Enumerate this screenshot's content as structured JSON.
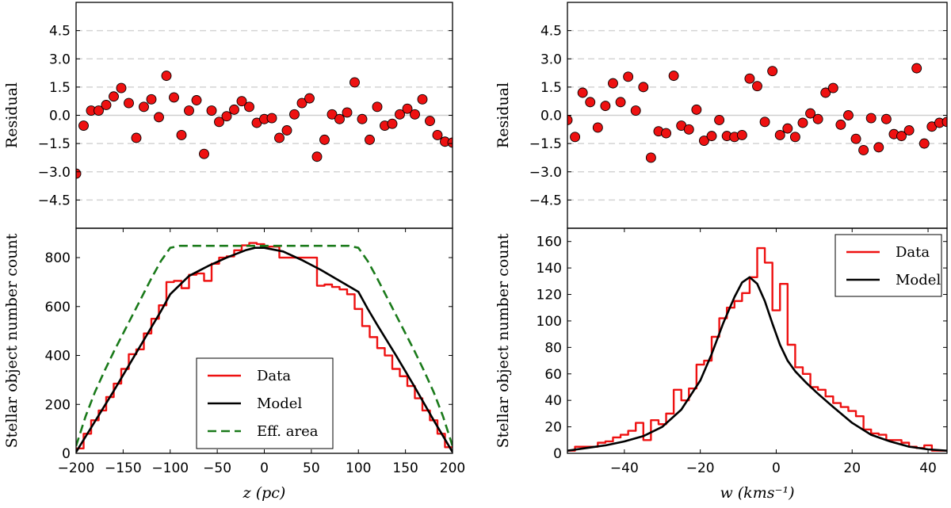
{
  "chart_data": [
    {
      "id": "left_residual",
      "type": "scatter",
      "xlim": [
        -200,
        200
      ],
      "ylim": [
        -6,
        6
      ],
      "yticks": [
        -4.5,
        -3.0,
        -1.5,
        0.0,
        1.5,
        3.0,
        4.5
      ],
      "ytick_labels": [
        "−4.5",
        "−3.0",
        "−1.5",
        "0.0",
        "1.5",
        "3.0",
        "4.5"
      ],
      "ylabel": "Residual",
      "xlabel": "",
      "grid": "dashed horizontal",
      "marker_color": "#ee1111",
      "x": [
        -200,
        -192,
        -184,
        -176,
        -168,
        -160,
        -152,
        -144,
        -136,
        -128,
        -120,
        -112,
        -104,
        -96,
        -88,
        -80,
        -72,
        -64,
        -56,
        -48,
        -40,
        -32,
        -24,
        -16,
        -8,
        0,
        8,
        16,
        24,
        32,
        40,
        48,
        56,
        64,
        72,
        80,
        88,
        96,
        104,
        112,
        120,
        128,
        136,
        144,
        152,
        160,
        168,
        176,
        184,
        192,
        200
      ],
      "y": [
        -3.1,
        -0.55,
        0.25,
        0.25,
        0.55,
        1.0,
        1.45,
        0.65,
        -1.2,
        0.45,
        0.85,
        -0.1,
        2.1,
        0.95,
        -1.05,
        0.25,
        0.8,
        -2.05,
        0.25,
        -0.35,
        -0.05,
        0.3,
        0.75,
        0.45,
        -0.4,
        -0.2,
        -0.15,
        -1.2,
        -0.8,
        0.05,
        0.65,
        0.9,
        -2.2,
        -1.3,
        0.05,
        -0.2,
        0.15,
        1.75,
        -0.2,
        -1.3,
        0.45,
        -0.55,
        -0.45,
        0.05,
        0.35,
        0.05,
        0.85,
        -0.3,
        -1.05,
        -1.4,
        -1.45
      ]
    },
    {
      "id": "left_counts",
      "type": "line",
      "xlim": [
        -200,
        200
      ],
      "ylim": [
        0,
        920
      ],
      "xticks": [
        -200,
        -150,
        -100,
        -50,
        0,
        50,
        100,
        150,
        200
      ],
      "xtick_labels": [
        "−200",
        "−150",
        "−100",
        "−50",
        "0",
        "50",
        "100",
        "150",
        "200"
      ],
      "yticks": [
        0,
        200,
        400,
        600,
        800
      ],
      "ytick_labels": [
        "0",
        "200",
        "400",
        "600",
        "800"
      ],
      "xlabel": "z  (pc)",
      "ylabel": "Stellar object number count",
      "legend": "lower-center",
      "series": [
        {
          "name": "Data",
          "style": "step",
          "color": "#ee1111",
          "bin_edges": [
            -200,
            -192,
            -184,
            -176,
            -168,
            -160,
            -152,
            -144,
            -136,
            -128,
            -120,
            -112,
            -104,
            -96,
            -88,
            -80,
            -72,
            -64,
            -56,
            -48,
            -40,
            -32,
            -24,
            -16,
            -8,
            0,
            8,
            16,
            24,
            32,
            40,
            48,
            56,
            64,
            72,
            80,
            88,
            96,
            104,
            112,
            120,
            128,
            136,
            144,
            152,
            160,
            168,
            176,
            184,
            192,
            200
          ],
          "values": [
            20,
            80,
            135,
            175,
            230,
            285,
            345,
            405,
            425,
            490,
            550,
            605,
            700,
            705,
            675,
            730,
            735,
            705,
            775,
            800,
            805,
            830,
            850,
            860,
            855,
            845,
            845,
            800,
            800,
            800,
            800,
            800,
            685,
            690,
            680,
            670,
            650,
            590,
            520,
            475,
            430,
            400,
            345,
            315,
            275,
            225,
            175,
            135,
            80,
            25
          ]
        },
        {
          "name": "Model",
          "style": "line",
          "color": "#000000",
          "x": [
            -200,
            -180,
            -160,
            -140,
            -120,
            -110,
            -100,
            -80,
            -60,
            -40,
            -20,
            -10,
            0,
            20,
            40,
            60,
            80,
            100,
            110,
            120,
            140,
            160,
            180,
            200
          ],
          "y": [
            5,
            130,
            255,
            385,
            515,
            580,
            650,
            725,
            765,
            800,
            830,
            840,
            840,
            825,
            790,
            750,
            705,
            660,
            590,
            525,
            400,
            270,
            135,
            5
          ]
        },
        {
          "name": "Eff. area",
          "style": "dashed",
          "color": "#1a7a1a",
          "x": [
            -200,
            -190,
            -180,
            -170,
            -160,
            -150,
            -140,
            -130,
            -120,
            -110,
            -100,
            -90,
            90,
            100,
            110,
            120,
            130,
            140,
            150,
            160,
            170,
            180,
            190,
            200
          ],
          "y": [
            30,
            150,
            250,
            335,
            415,
            490,
            565,
            640,
            715,
            785,
            840,
            848,
            848,
            840,
            785,
            715,
            640,
            565,
            490,
            415,
            335,
            250,
            150,
            30
          ]
        }
      ]
    },
    {
      "id": "right_residual",
      "type": "scatter",
      "xlim": [
        -55,
        45
      ],
      "ylim": [
        -6,
        6
      ],
      "yticks": [
        -4.5,
        -3.0,
        -1.5,
        0.0,
        1.5,
        3.0,
        4.5
      ],
      "ytick_labels": [
        "−4.5",
        "−3.0",
        "−1.5",
        "0.0",
        "1.5",
        "3.0",
        "4.5"
      ],
      "ylabel": "Residual",
      "xlabel": "",
      "grid": "dashed horizontal",
      "marker_color": "#ee1111",
      "x": [
        -55,
        -53,
        -51,
        -49,
        -47,
        -45,
        -43,
        -41,
        -39,
        -37,
        -35,
        -33,
        -31,
        -29,
        -27,
        -25,
        -23,
        -21,
        -19,
        -17,
        -15,
        -13,
        -11,
        -9,
        -7,
        -5,
        -3,
        -1,
        1,
        3,
        5,
        7,
        9,
        11,
        13,
        15,
        17,
        19,
        21,
        23,
        25,
        27,
        29,
        31,
        33,
        35,
        37,
        39,
        41,
        43,
        45
      ],
      "y": [
        -0.25,
        -1.15,
        1.2,
        0.7,
        -0.65,
        0.5,
        1.7,
        0.7,
        2.05,
        0.25,
        1.5,
        -2.25,
        -0.85,
        -0.95,
        2.1,
        -0.55,
        -0.75,
        0.3,
        -1.35,
        -1.1,
        -0.25,
        -1.1,
        -1.15,
        -1.05,
        1.95,
        1.55,
        -0.35,
        2.35,
        -1.05,
        -0.7,
        -1.15,
        -0.4,
        0.1,
        -0.2,
        1.2,
        1.45,
        -0.5,
        0.0,
        -1.25,
        -1.85,
        -0.15,
        -1.7,
        -0.2,
        -1.0,
        -1.1,
        -0.8,
        2.5,
        -1.5,
        -0.6,
        -0.4,
        -0.35
      ]
    },
    {
      "id": "right_counts",
      "type": "line",
      "xlim": [
        -55,
        45
      ],
      "ylim": [
        0,
        170
      ],
      "xticks": [
        -40,
        -20,
        0,
        20,
        40
      ],
      "xtick_labels": [
        "−40",
        "−20",
        "0",
        "20",
        "40"
      ],
      "yticks": [
        0,
        20,
        40,
        60,
        80,
        100,
        120,
        140,
        160
      ],
      "ytick_labels": [
        "0",
        "20",
        "40",
        "60",
        "80",
        "100",
        "120",
        "140",
        "160"
      ],
      "xlabel": "w  (kms⁻¹)",
      "ylabel": "Stellar object number count",
      "legend": "top-right",
      "series": [
        {
          "name": "Data",
          "style": "step",
          "color": "#ee1111",
          "bin_edges": [
            -55,
            -53,
            -51,
            -49,
            -47,
            -45,
            -43,
            -41,
            -39,
            -37,
            -35,
            -33,
            -31,
            -29,
            -27,
            -25,
            -23,
            -21,
            -19,
            -17,
            -15,
            -13,
            -11,
            -9,
            -7,
            -5,
            -3,
            -1,
            1,
            3,
            5,
            7,
            9,
            11,
            13,
            15,
            17,
            19,
            21,
            23,
            25,
            27,
            29,
            31,
            33,
            35,
            37,
            39,
            41,
            43,
            45
          ],
          "values": [
            2,
            5,
            5,
            5,
            8,
            9,
            12,
            14,
            17,
            23,
            10,
            25,
            22,
            30,
            48,
            40,
            49,
            67,
            70,
            88,
            102,
            110,
            115,
            121,
            133,
            155,
            144,
            108,
            128,
            82,
            65,
            60,
            50,
            48,
            43,
            38,
            35,
            32,
            28,
            18,
            15,
            14,
            10,
            10,
            8,
            5,
            4,
            6,
            2,
            2
          ]
        },
        {
          "name": "Model",
          "style": "line",
          "color": "#000000",
          "x": [
            -55,
            -50,
            -45,
            -40,
            -35,
            -30,
            -25,
            -20,
            -17,
            -14,
            -11,
            -9,
            -7,
            -5,
            -3,
            -1,
            1,
            3,
            5,
            8,
            11,
            15,
            20,
            25,
            30,
            35,
            40,
            45
          ],
          "y": [
            2,
            4,
            6,
            9,
            13,
            20,
            33,
            55,
            75,
            98,
            118,
            129,
            133,
            128,
            115,
            98,
            82,
            70,
            62,
            53,
            45,
            35,
            23,
            14,
            9,
            5,
            3,
            2
          ]
        }
      ]
    }
  ]
}
